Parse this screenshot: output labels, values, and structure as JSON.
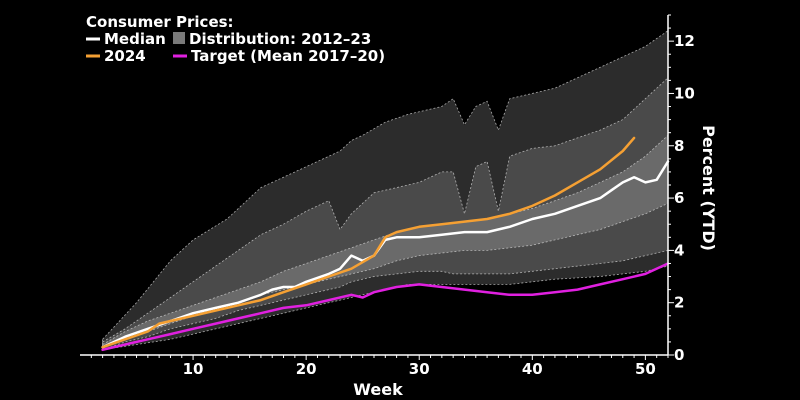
{
  "chart_data": {
    "type": "area",
    "title": "",
    "legend": {
      "heading": "Consumer Prices:",
      "placement": "top-left",
      "entries": [
        {
          "label": "Median",
          "color": "#ffffff",
          "kind": "line"
        },
        {
          "label": "Distribution: 2012–23",
          "color": "#7a7a7a",
          "kind": "box"
        },
        {
          "label": "2024",
          "color": "#f5a033",
          "kind": "line"
        },
        {
          "label": "Target (Mean 2017–20)",
          "color": "#e020e0",
          "kind": "line"
        }
      ]
    },
    "xlabel": "Week",
    "ylabel": "Percent (YTD)",
    "y_axis_side": "right",
    "xlim": [
      0,
      52
    ],
    "ylim": [
      0,
      13
    ],
    "x_ticks": [
      10,
      20,
      30,
      40,
      50
    ],
    "y_ticks": [
      0,
      2,
      4,
      6,
      8,
      10,
      12
    ],
    "grid": false,
    "colors": {
      "background": "#000000",
      "band_outer": "#2c2c2c",
      "band_mid": "#4a4a4a",
      "band_inner": "#6a6a6a",
      "median": "#ffffff",
      "series_2024": "#f5a033",
      "target": "#e020e0"
    },
    "bands": [
      {
        "name": "outer",
        "x": [
          2,
          5,
          8,
          10,
          13,
          16,
          18,
          21,
          23,
          24,
          25,
          27,
          29,
          32,
          33,
          34,
          35,
          36,
          37,
          38,
          42,
          46,
          50,
          52
        ],
        "upper": [
          0.6,
          2.0,
          3.6,
          4.4,
          5.2,
          6.4,
          6.8,
          7.4,
          7.8,
          8.2,
          8.4,
          8.9,
          9.2,
          9.5,
          9.8,
          8.8,
          9.5,
          9.7,
          8.6,
          9.8,
          10.2,
          11.0,
          11.8,
          12.4
        ],
        "lower": [
          0.2,
          0.4,
          0.6,
          0.8,
          1.1,
          1.4,
          1.6,
          1.9,
          2.1,
          2.2,
          2.3,
          2.5,
          2.7,
          2.7,
          2.7,
          2.7,
          2.7,
          2.7,
          2.7,
          2.7,
          2.9,
          3.0,
          3.2,
          3.4
        ]
      },
      {
        "name": "mid",
        "x": [
          2,
          4,
          6,
          8,
          10,
          12,
          14,
          16,
          18,
          20,
          22,
          23,
          24,
          26,
          28,
          30,
          32,
          33,
          34,
          35,
          36,
          37,
          38,
          40,
          42,
          44,
          46,
          48,
          50,
          52
        ],
        "upper": [
          0.5,
          1.0,
          1.6,
          2.2,
          2.8,
          3.4,
          4.0,
          4.6,
          5.0,
          5.5,
          5.9,
          4.8,
          5.4,
          6.2,
          6.4,
          6.6,
          7.0,
          7.0,
          5.4,
          7.2,
          7.4,
          5.5,
          7.6,
          7.9,
          8.0,
          8.3,
          8.6,
          9.0,
          9.8,
          10.6
        ],
        "lower": [
          0.2,
          0.5,
          0.7,
          1.0,
          1.2,
          1.4,
          1.7,
          1.9,
          2.1,
          2.3,
          2.5,
          2.6,
          2.8,
          3.0,
          3.1,
          3.2,
          3.2,
          3.1,
          3.1,
          3.1,
          3.1,
          3.1,
          3.1,
          3.2,
          3.3,
          3.4,
          3.5,
          3.6,
          3.8,
          4.0
        ]
      },
      {
        "name": "inner",
        "x": [
          2,
          4,
          6,
          8,
          10,
          12,
          14,
          16,
          18,
          20,
          22,
          24,
          26,
          28,
          30,
          32,
          34,
          36,
          38,
          40,
          42,
          44,
          46,
          48,
          50,
          52
        ],
        "upper": [
          0.4,
          0.9,
          1.3,
          1.6,
          1.9,
          2.2,
          2.5,
          2.8,
          3.2,
          3.5,
          3.8,
          4.1,
          4.4,
          4.7,
          4.9,
          5.0,
          5.1,
          5.2,
          5.4,
          5.6,
          5.9,
          6.2,
          6.6,
          7.0,
          7.6,
          8.4
        ],
        "lower": [
          0.3,
          0.6,
          0.9,
          1.2,
          1.5,
          1.8,
          2.0,
          2.3,
          2.5,
          2.7,
          2.9,
          3.1,
          3.3,
          3.6,
          3.8,
          3.9,
          4.0,
          4.0,
          4.1,
          4.2,
          4.4,
          4.6,
          4.8,
          5.1,
          5.4,
          5.8
        ]
      }
    ],
    "series": [
      {
        "name": "Median",
        "color": "#ffffff",
        "x": [
          2,
          4,
          6,
          8,
          10,
          12,
          14,
          16,
          17,
          18,
          19,
          20,
          22,
          23,
          24,
          25,
          26,
          27,
          28,
          30,
          32,
          34,
          36,
          38,
          40,
          42,
          44,
          46,
          47,
          48,
          49,
          50,
          51,
          52
        ],
        "y": [
          0.3,
          0.7,
          1.0,
          1.3,
          1.6,
          1.8,
          2.0,
          2.3,
          2.5,
          2.6,
          2.6,
          2.8,
          3.1,
          3.3,
          3.8,
          3.6,
          3.8,
          4.4,
          4.5,
          4.5,
          4.6,
          4.7,
          4.7,
          4.9,
          5.2,
          5.4,
          5.7,
          6.0,
          6.3,
          6.6,
          6.8,
          6.6,
          6.7,
          7.4
        ]
      },
      {
        "name": "2024",
        "color": "#f5a033",
        "x": [
          2,
          4,
          6,
          7,
          8,
          10,
          12,
          14,
          16,
          18,
          20,
          22,
          24,
          26,
          27,
          28,
          30,
          32,
          34,
          36,
          38,
          40,
          42,
          44,
          46,
          48,
          49
        ],
        "y": [
          0.3,
          0.6,
          0.9,
          1.2,
          1.3,
          1.5,
          1.7,
          1.9,
          2.1,
          2.4,
          2.7,
          3.0,
          3.3,
          3.8,
          4.5,
          4.7,
          4.9,
          5.0,
          5.1,
          5.2,
          5.4,
          5.7,
          6.1,
          6.6,
          7.1,
          7.8,
          8.3
        ]
      },
      {
        "name": "Target (Mean 2017–20)",
        "color": "#e020e0",
        "x": [
          2,
          4,
          6,
          8,
          10,
          12,
          14,
          16,
          18,
          20,
          22,
          24,
          25,
          26,
          28,
          30,
          32,
          34,
          36,
          38,
          40,
          42,
          44,
          46,
          48,
          50,
          52
        ],
        "y": [
          0.2,
          0.4,
          0.6,
          0.8,
          1.0,
          1.2,
          1.4,
          1.6,
          1.8,
          1.9,
          2.1,
          2.3,
          2.2,
          2.4,
          2.6,
          2.7,
          2.6,
          2.5,
          2.4,
          2.3,
          2.3,
          2.4,
          2.5,
          2.7,
          2.9,
          3.1,
          3.5
        ]
      }
    ]
  }
}
